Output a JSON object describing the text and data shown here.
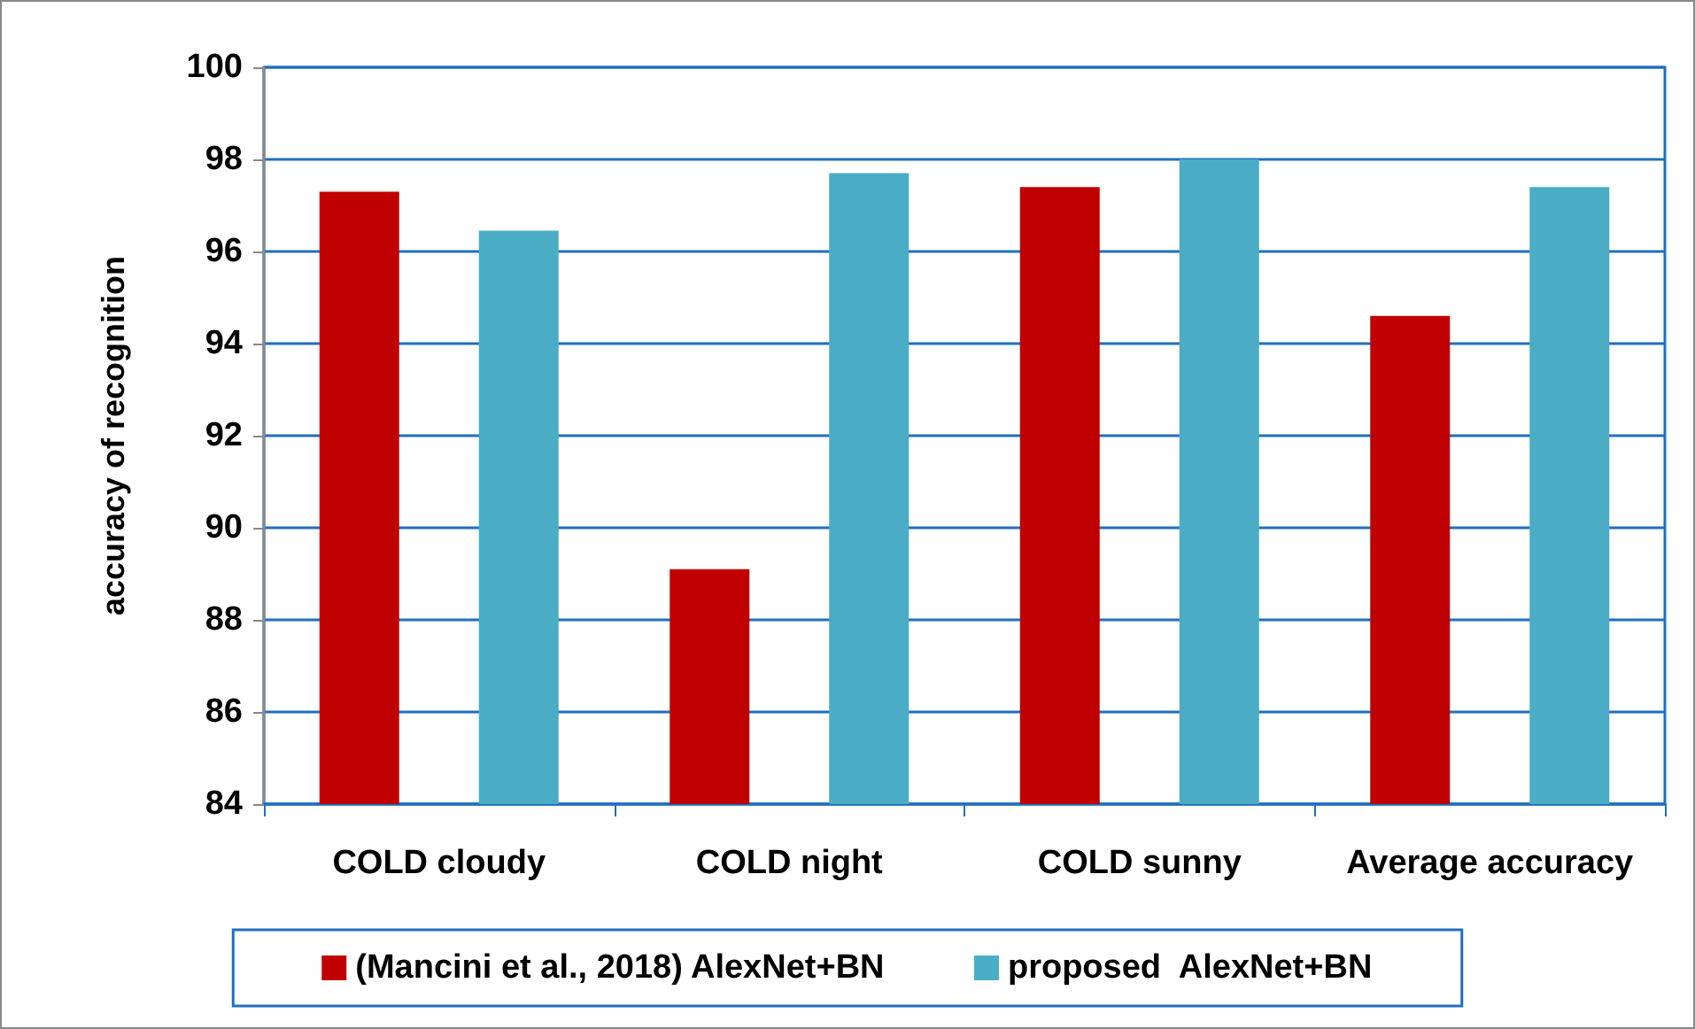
{
  "chart_data": {
    "type": "bar",
    "ylabel": "accuracy of recognition",
    "categories": [
      "COLD cloudy",
      "COLD night",
      "COLD sunny",
      "Average accuracy"
    ],
    "series": [
      {
        "name": "(Mancini et al., 2018) AlexNet+BN",
        "color": "#c00000",
        "values": [
          97.3,
          89.1,
          97.4,
          94.6
        ]
      },
      {
        "name": "proposed  AlexNet+BN",
        "color": "#4bacc6",
        "values": [
          96.45,
          97.7,
          98.0,
          97.4
        ]
      }
    ],
    "ylim": [
      84,
      100
    ],
    "yticks": [
      84,
      86,
      88,
      90,
      92,
      94,
      96,
      98,
      100
    ],
    "grid": true,
    "legend": "bottom"
  }
}
